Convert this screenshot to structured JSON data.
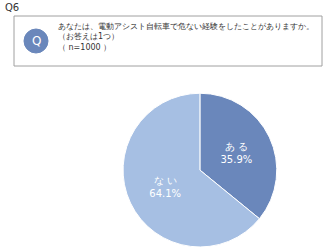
{
  "chart_data": {
    "type": "pie",
    "annotations": [
      "Q6",
      "Q"
    ],
    "title": "あなたは、電動アシスト自転車で危ない経験をしたことがありますか。",
    "subtitle": [
      "（お答えは1つ）",
      "（ n=1000 ）"
    ],
    "categories": [
      "あ る",
      "な い"
    ],
    "values": [
      35.9,
      64.1
    ],
    "value_labels": [
      "35.9%",
      "64.1%"
    ],
    "colors": [
      "#6a87bb",
      "#a6bfe3"
    ],
    "data_labels": true
  }
}
